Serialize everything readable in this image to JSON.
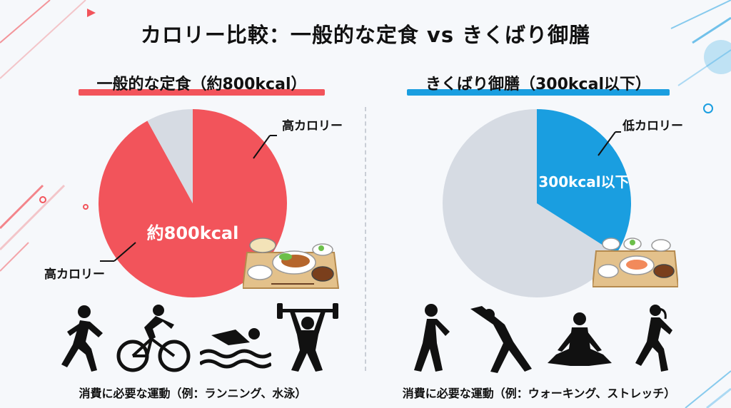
{
  "page": {
    "title": "カロリー比較：一般的な定食 vs きくばり御膳"
  },
  "left_panel": {
    "heading": "一般的な定食（約800kcal）",
    "accent_color": "#f2545b",
    "callout_top": "高カロリー",
    "callout_bottom": "高カロリー",
    "exercise_caption": "消費に必要な運動（例：ランニング、水泳）",
    "exercise_icons": [
      "running-icon",
      "cycling-icon",
      "swimming-icon",
      "weightlifting-icon"
    ]
  },
  "right_panel": {
    "heading": "きくばり御膳（300kcal以下）",
    "accent_color": "#1a9ee0",
    "callout_top": "低カロリー",
    "exercise_caption": "消費に必要な運動（例：ウォーキング、ストレッチ）",
    "exercise_icons": [
      "walking-icon",
      "stretching-icon",
      "meditation-icon",
      "jogging-icon"
    ]
  },
  "chart_data": [
    {
      "type": "pie",
      "title": "一般的な定食（約800kcal）",
      "slices": [
        {
          "label": "約800kcal",
          "value": 92,
          "color": "#f2545b"
        },
        {
          "label": "",
          "value": 8,
          "color": "#d6dbe3"
        }
      ],
      "legend": "none"
    },
    {
      "type": "pie",
      "title": "きくばり御膳（300kcal以下）",
      "slices": [
        {
          "label": "300kcal以下",
          "value": 34,
          "color": "#1a9ee0"
        },
        {
          "label": "",
          "value": 66,
          "color": "#d6dbe3"
        }
      ],
      "legend": "none"
    }
  ]
}
